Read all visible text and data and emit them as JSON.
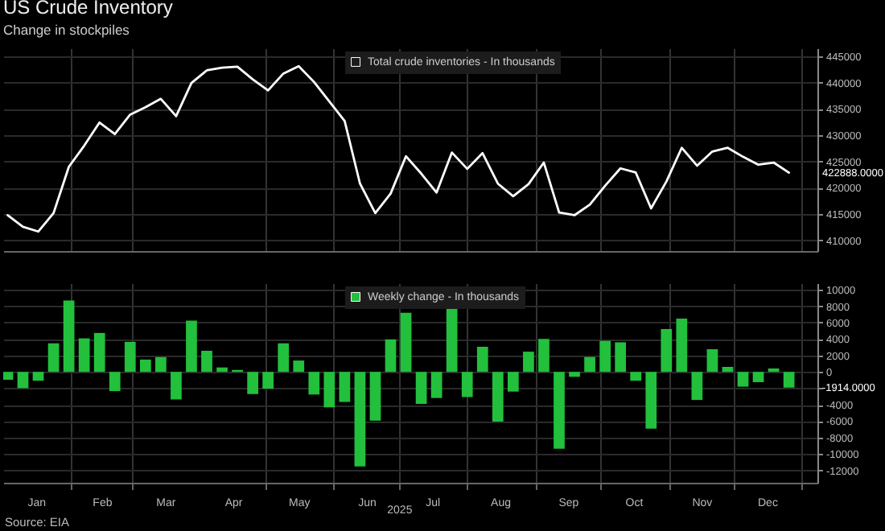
{
  "chart_data": [
    {
      "type": "line",
      "title": "US Crude Inventory",
      "subtitle": "Change in stockpiles",
      "x": [
        "2025-01-03",
        "2025-01-10",
        "2025-01-17",
        "2025-01-24",
        "2025-01-31",
        "2025-02-07",
        "2025-02-14",
        "2025-02-21",
        "2025-02-28",
        "2025-03-07",
        "2025-03-14",
        "2025-03-21",
        "2025-03-28",
        "2025-04-04",
        "2025-04-11",
        "2025-04-18",
        "2025-04-25",
        "2025-05-02",
        "2025-05-09",
        "2025-05-16",
        "2025-05-23",
        "2025-05-30",
        "2025-06-06",
        "2025-06-13",
        "2025-06-20",
        "2025-06-27",
        "2025-07-04",
        "2025-07-11",
        "2025-07-18",
        "2025-07-25",
        "2025-08-01",
        "2025-08-08",
        "2025-08-15",
        "2025-08-22",
        "2025-08-29",
        "2025-09-05",
        "2025-09-12",
        "2025-09-19",
        "2025-09-26",
        "2025-10-03",
        "2025-10-10",
        "2025-10-17",
        "2025-10-24",
        "2025-10-31",
        "2025-11-07",
        "2025-11-14",
        "2025-11-21",
        "2025-11-28",
        "2025-12-05",
        "2025-12-12",
        "2025-12-19",
        "2025-12-26"
      ],
      "series": [
        {
          "name": "Total crude inventories - In thousands",
          "color": "#ffffff",
          "values": [
            414800,
            412600,
            411700,
            415200,
            424000,
            428000,
            432400,
            430200,
            433900,
            435300,
            436900,
            433600,
            439900,
            442300,
            442800,
            443000,
            440600,
            438500,
            441700,
            443100,
            440100,
            436400,
            432700,
            420800,
            415200,
            418900,
            426000,
            422700,
            419100,
            426700,
            423600,
            426600,
            420800,
            418400,
            420700,
            424800,
            415300,
            414800,
            416800,
            420400,
            423700,
            422900,
            416100,
            421200,
            427600,
            424200,
            426900,
            427600,
            425900,
            424400,
            424800,
            422888
          ]
        }
      ],
      "xlim": [
        "2025-01-01",
        "2026-01-08"
      ],
      "xticks": [
        {
          "value": "2025-02-01",
          "label": null
        },
        {
          "value": "2025-03-01",
          "label": null
        },
        {
          "value": "2025-05-01",
          "label": null
        },
        {
          "value": "2025-06-01",
          "label": null
        },
        {
          "value": "2025-07-01",
          "label": null
        },
        {
          "value": "2025-08-01",
          "label": null
        },
        {
          "value": "2025-09-01",
          "label": null
        },
        {
          "value": "2025-10-01",
          "label": null
        },
        {
          "value": "2025-11-01",
          "label": null
        },
        {
          "value": "2025-12-01",
          "label": null
        },
        {
          "value": "2026-01-01",
          "label": null
        }
      ],
      "ylim": [
        408000,
        446500
      ],
      "yticks": [
        410000,
        415000,
        420000,
        425000,
        430000,
        435000,
        440000,
        445000
      ],
      "tick_labels": "y",
      "grid": true,
      "legend": "top",
      "annotations": [
        "422888.0000"
      ]
    },
    {
      "type": "bar",
      "x": [
        "2025-01-03",
        "2025-01-10",
        "2025-01-17",
        "2025-01-24",
        "2025-01-31",
        "2025-02-07",
        "2025-02-14",
        "2025-02-21",
        "2025-02-28",
        "2025-03-07",
        "2025-03-14",
        "2025-03-21",
        "2025-03-28",
        "2025-04-04",
        "2025-04-11",
        "2025-04-18",
        "2025-04-25",
        "2025-05-02",
        "2025-05-09",
        "2025-05-16",
        "2025-05-23",
        "2025-05-30",
        "2025-06-06",
        "2025-06-13",
        "2025-06-20",
        "2025-06-27",
        "2025-07-04",
        "2025-07-11",
        "2025-07-18",
        "2025-07-25",
        "2025-08-01",
        "2025-08-08",
        "2025-08-15",
        "2025-08-22",
        "2025-08-29",
        "2025-09-05",
        "2025-09-12",
        "2025-09-19",
        "2025-09-26",
        "2025-10-03",
        "2025-10-10",
        "2025-10-17",
        "2025-10-24",
        "2025-10-31",
        "2025-11-07",
        "2025-11-14",
        "2025-11-21",
        "2025-11-28",
        "2025-12-05",
        "2025-12-12",
        "2025-12-19",
        "2025-12-26"
      ],
      "series": [
        {
          "name": "Weekly change - In thousands",
          "color": "#22c03c",
          "values": [
            -960,
            -1980,
            -1080,
            3480,
            8700,
            4080,
            4740,
            -2340,
            3660,
            1500,
            1800,
            -3360,
            6240,
            2580,
            540,
            240,
            -2700,
            -2040,
            3480,
            1380,
            -2760,
            -4320,
            -3660,
            -11520,
            -5940,
            3960,
            7200,
            -3900,
            -3180,
            7700,
            -3060,
            3060,
            -6060,
            -2400,
            2460,
            4020,
            -9360,
            -600,
            1800,
            3780,
            3600,
            -1080,
            -6900,
            5220,
            6480,
            -3420,
            2760,
            600,
            -1800,
            -1260,
            420,
            -1914
          ]
        }
      ],
      "xlim": [
        "2025-01-01",
        "2026-01-08"
      ],
      "xticks": [
        {
          "value": "2025-01-16",
          "label": "Jan"
        },
        {
          "value": "2025-02-01",
          "label": null
        },
        {
          "value": "2025-02-15",
          "label": "Feb"
        },
        {
          "value": "2025-03-01",
          "label": null
        },
        {
          "value": "2025-03-16",
          "label": "Mar"
        },
        {
          "value": "2025-04-16",
          "label": "Apr"
        },
        {
          "value": "2025-05-01",
          "label": null
        },
        {
          "value": "2025-05-16",
          "label": "May"
        },
        {
          "value": "2025-06-01",
          "label": null
        },
        {
          "value": "2025-06-16",
          "label": "Jun"
        },
        {
          "value": "2025-07-01",
          "label": null
        },
        {
          "value": "2025-07-16",
          "label": "Jul"
        },
        {
          "value": "2025-08-01",
          "label": null
        },
        {
          "value": "2025-08-16",
          "label": "Aug"
        },
        {
          "value": "2025-09-01",
          "label": null
        },
        {
          "value": "2025-09-16",
          "label": "Sep"
        },
        {
          "value": "2025-10-01",
          "label": null
        },
        {
          "value": "2025-10-16",
          "label": "Oct"
        },
        {
          "value": "2025-11-01",
          "label": null
        },
        {
          "value": "2025-11-16",
          "label": "Nov"
        },
        {
          "value": "2025-12-01",
          "label": null
        },
        {
          "value": "2025-12-16",
          "label": "Dec"
        },
        {
          "value": "2026-01-01",
          "label": null
        }
      ],
      "ylim": [
        -13500,
        10800
      ],
      "yticks": [
        -12000,
        -10000,
        -8000,
        -6000,
        -4000,
        {
          "value": -2000,
          "label": null
        },
        0,
        2000,
        4000,
        6000,
        8000,
        10000
      ],
      "grid": true,
      "legend": "top",
      "annotations": [
        "Source: EIA",
        "-1914.0000",
        "2025"
      ]
    }
  ]
}
